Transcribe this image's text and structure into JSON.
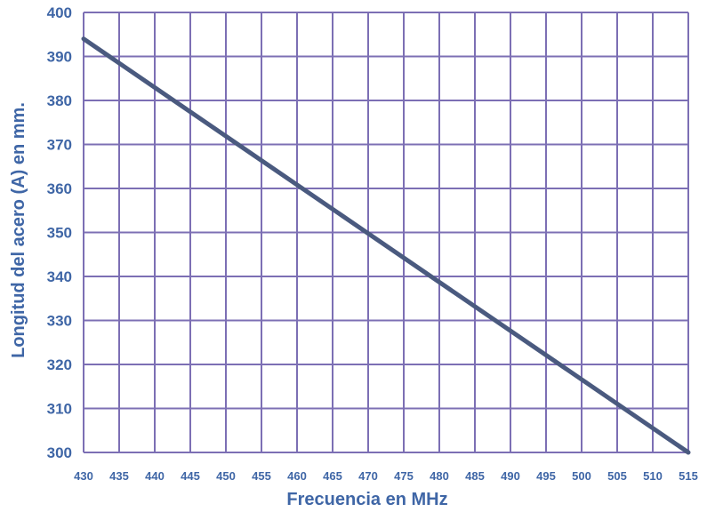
{
  "chart_data": {
    "type": "line",
    "title": "",
    "xlabel": "Frecuencia en MHz",
    "ylabel": "Longitud del acero (A) en mm.",
    "xlim": [
      430,
      515
    ],
    "ylim": [
      300,
      400
    ],
    "x_ticks": [
      430,
      435,
      440,
      445,
      450,
      455,
      460,
      465,
      470,
      475,
      480,
      485,
      490,
      495,
      500,
      505,
      510,
      515
    ],
    "y_ticks": [
      300,
      310,
      320,
      330,
      340,
      350,
      360,
      370,
      380,
      390,
      400
    ],
    "grid": true,
    "legend": "none",
    "series": [
      {
        "x": [
          430,
          515
        ],
        "y": [
          394,
          300
        ]
      }
    ],
    "colors": {
      "line": "#4a5a7f",
      "grid": "#7c6fb4",
      "text": "#3f66a6"
    }
  }
}
